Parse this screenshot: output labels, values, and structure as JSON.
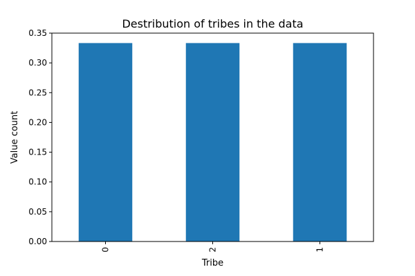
{
  "chart_data": {
    "type": "bar",
    "title": "Destribution of tribes in the data",
    "xlabel": "Tribe",
    "ylabel": "Value count",
    "categories": [
      "0",
      "2",
      "1"
    ],
    "values": [
      0.3333,
      0.3333,
      0.3333
    ],
    "ylim": [
      0,
      0.35
    ],
    "yticks": [
      "0.00",
      "0.05",
      "0.10",
      "0.15",
      "0.20",
      "0.25",
      "0.30",
      "0.35"
    ],
    "x_tick_rotation": 90,
    "bar_color": "#1f77b4",
    "grid": false,
    "legend": "none"
  }
}
